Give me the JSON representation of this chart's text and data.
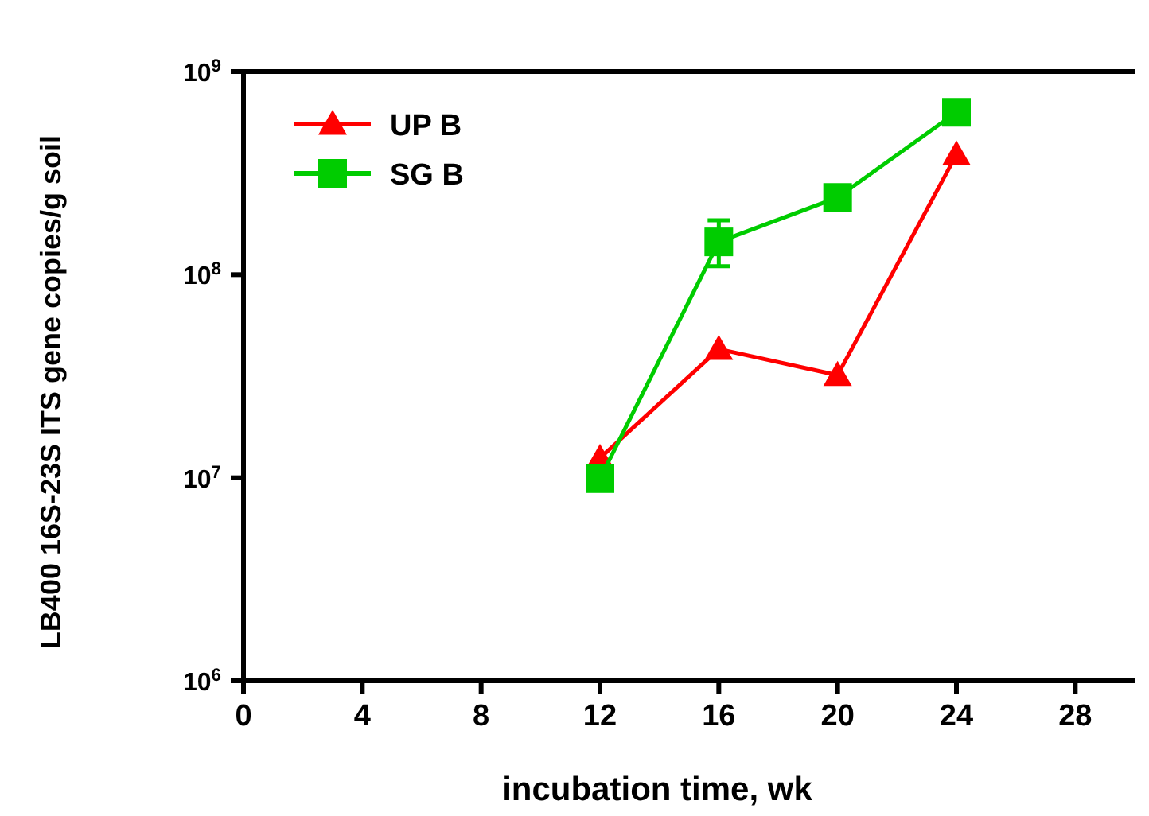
{
  "chart_data": {
    "type": "line",
    "xlabel": "incubation time, wk",
    "ylabel": "LB400 16S-23S ITS gene copies/g soil",
    "log": "y",
    "xlim": [
      0,
      30
    ],
    "xticks": [
      0,
      4,
      8,
      12,
      16,
      20,
      24,
      28
    ],
    "ylim": [
      1000000,
      1000000000
    ],
    "yticks": [
      {
        "value": 1000000,
        "label": "10$^{6}$"
      },
      {
        "value": 10000000,
        "label": "10$^{7}$"
      },
      {
        "value": 100000000,
        "label": "10$^{8}$"
      },
      {
        "value": 1000000000,
        "label": "10$^{9}$"
      }
    ],
    "grid": false,
    "legend": "top left",
    "line_style": "solid",
    "x": [
      12,
      16,
      20,
      24
    ],
    "series": [
      {
        "name": "UP B",
        "color": "#ff0000",
        "marker": "triangle",
        "values": [
          12500000,
          43000000,
          32000000,
          390000000
        ]
      },
      {
        "name": "SG B",
        "color": "#00cc00",
        "marker": "square",
        "values": [
          9900000,
          145000000,
          240000000,
          630000000
        ],
        "errors": [
          null,
          [
            110000000,
            185000000
          ],
          null,
          null
        ]
      }
    ]
  }
}
